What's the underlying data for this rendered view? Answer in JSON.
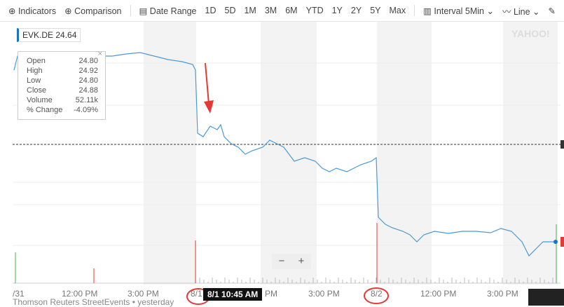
{
  "toolbar": {
    "indicators": "Indicators",
    "comparison": "Comparison",
    "date_range": "Date Range",
    "ranges": [
      "1D",
      "5D",
      "1M",
      "3M",
      "6M",
      "YTD",
      "1Y",
      "2Y",
      "5Y",
      "Max"
    ],
    "interval": "Interval 5Min",
    "chart_type": "Line"
  },
  "legend": {
    "symbol": "EVK.DE",
    "price": "24.64",
    "color": "#1a73c8"
  },
  "tooltip": [
    {
      "k": "Open",
      "v": "24.80"
    },
    {
      "k": "High",
      "v": "24.92"
    },
    {
      "k": "Low",
      "v": "24.80"
    },
    {
      "k": "Close",
      "v": "24.88"
    },
    {
      "k": "Volume",
      "v": "52.11k"
    },
    {
      "k": "% Change",
      "v": "-4.09%"
    }
  ],
  "xaxis": [
    "/31",
    "12:00 PM",
    "3:00 PM",
    "8/1",
    "PM",
    "3:00 PM",
    "8/2",
    "12:00 PM",
    "3:00 PM"
  ],
  "crosshair_label": "8/1 10:45 AM",
  "footer": "Thomson Reuters StreetEvents • yesterday",
  "watermark": "YAHOO! FINANCE",
  "zoom": {
    "minus": "−",
    "plus": "+"
  },
  "colors": {
    "line": "#4a9ad6",
    "annotation": "#e53935"
  }
}
